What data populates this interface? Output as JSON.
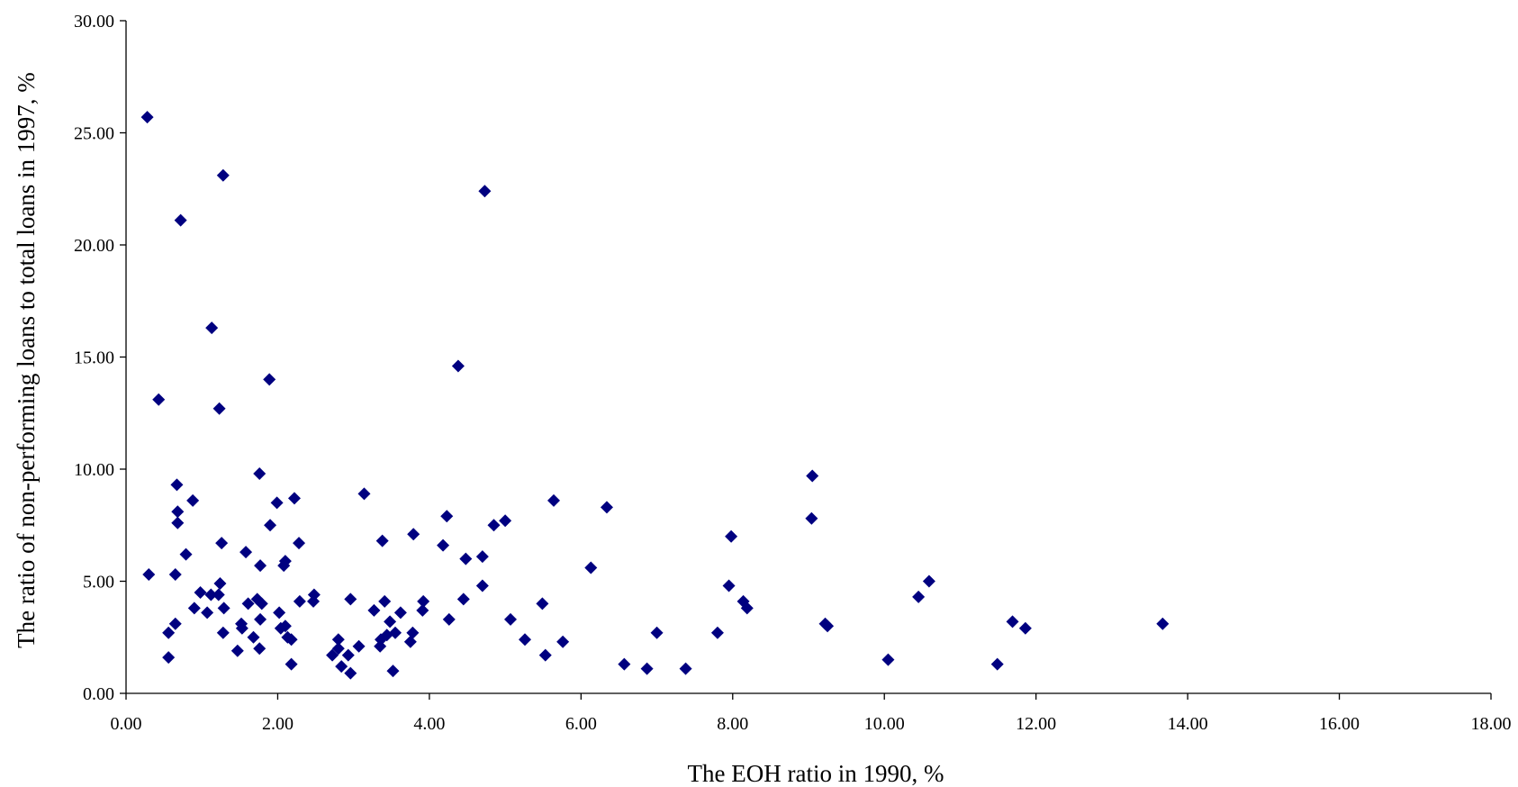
{
  "chart_data": {
    "type": "scatter",
    "title": "",
    "xlabel": "The EOH ratio in 1990, %",
    "ylabel": "The ratio of non-performing loans to total loans in 1997, %",
    "xlim": [
      0,
      18
    ],
    "ylim": [
      0,
      30
    ],
    "x_ticks": [
      "0.00",
      "2.00",
      "4.00",
      "6.00",
      "8.00",
      "10.00",
      "12.00",
      "14.00",
      "16.00",
      "18.00"
    ],
    "y_ticks": [
      "0.00",
      "5.00",
      "10.00",
      "15.00",
      "20.00",
      "25.00",
      "30.00"
    ],
    "grid": false,
    "legend": "none",
    "marker": "diamond",
    "marker_color": "#000080",
    "series": [
      {
        "points": [
          [
            0.28,
            25.7
          ],
          [
            1.28,
            23.1
          ],
          [
            0.72,
            21.1
          ],
          [
            4.73,
            22.4
          ],
          [
            1.13,
            16.3
          ],
          [
            0.43,
            13.1
          ],
          [
            4.38,
            14.6
          ],
          [
            1.89,
            14.0
          ],
          [
            1.23,
            12.7
          ],
          [
            0.3,
            5.3
          ],
          [
            0.67,
            9.3
          ],
          [
            1.76,
            9.8
          ],
          [
            9.05,
            9.7
          ],
          [
            0.88,
            8.6
          ],
          [
            0.68,
            8.1
          ],
          [
            1.99,
            8.5
          ],
          [
            2.22,
            8.7
          ],
          [
            3.14,
            8.9
          ],
          [
            5.64,
            8.6
          ],
          [
            0.68,
            7.6
          ],
          [
            1.9,
            7.5
          ],
          [
            4.23,
            7.9
          ],
          [
            6.34,
            8.3
          ],
          [
            9.04,
            7.8
          ],
          [
            0.79,
            6.2
          ],
          [
            1.26,
            6.7
          ],
          [
            1.58,
            6.3
          ],
          [
            2.28,
            6.7
          ],
          [
            3.38,
            6.8
          ],
          [
            3.79,
            7.1
          ],
          [
            4.18,
            6.6
          ],
          [
            4.85,
            7.5
          ],
          [
            5.0,
            7.7
          ],
          [
            7.98,
            7.0
          ],
          [
            1.77,
            5.7
          ],
          [
            2.08,
            5.7
          ],
          [
            2.1,
            5.9
          ],
          [
            4.48,
            6.0
          ],
          [
            4.7,
            6.1
          ],
          [
            6.13,
            5.6
          ],
          [
            0.65,
            5.3
          ],
          [
            1.24,
            4.9
          ],
          [
            0.98,
            4.5
          ],
          [
            1.12,
            4.4
          ],
          [
            1.22,
            4.4
          ],
          [
            1.61,
            4.0
          ],
          [
            1.73,
            4.2
          ],
          [
            1.79,
            4.0
          ],
          [
            2.48,
            4.4
          ],
          [
            2.96,
            4.2
          ],
          [
            3.41,
            4.1
          ],
          [
            4.45,
            4.2
          ],
          [
            4.7,
            4.8
          ],
          [
            5.49,
            4.0
          ],
          [
            7.95,
            4.8
          ],
          [
            8.14,
            4.1
          ],
          [
            10.45,
            4.3
          ],
          [
            10.59,
            5.0
          ],
          [
            2.29,
            4.1
          ],
          [
            2.47,
            4.1
          ],
          [
            0.9,
            3.8
          ],
          [
            1.07,
            3.6
          ],
          [
            1.29,
            3.8
          ],
          [
            1.53,
            2.9
          ],
          [
            1.68,
            2.5
          ],
          [
            1.77,
            3.3
          ],
          [
            2.02,
            3.6
          ],
          [
            2.04,
            2.9
          ],
          [
            2.1,
            3.0
          ],
          [
            2.13,
            2.5
          ],
          [
            3.27,
            3.7
          ],
          [
            3.48,
            3.2
          ],
          [
            3.62,
            3.6
          ],
          [
            3.91,
            3.7
          ],
          [
            3.92,
            4.1
          ],
          [
            4.26,
            3.3
          ],
          [
            5.07,
            3.3
          ],
          [
            8.19,
            3.8
          ],
          [
            9.22,
            3.1
          ],
          [
            9.25,
            3.0
          ],
          [
            11.69,
            3.2
          ],
          [
            11.86,
            2.9
          ],
          [
            13.67,
            3.1
          ],
          [
            0.56,
            2.7
          ],
          [
            0.65,
            3.1
          ],
          [
            1.28,
            2.7
          ],
          [
            1.52,
            3.1
          ],
          [
            2.18,
            2.4
          ],
          [
            2.8,
            2.4
          ],
          [
            3.36,
            2.4
          ],
          [
            3.44,
            2.6
          ],
          [
            3.55,
            2.7
          ],
          [
            3.78,
            2.7
          ],
          [
            5.26,
            2.4
          ],
          [
            5.76,
            2.3
          ],
          [
            7.0,
            2.7
          ],
          [
            7.8,
            2.7
          ],
          [
            1.47,
            1.9
          ],
          [
            1.76,
            2.0
          ],
          [
            2.72,
            1.7
          ],
          [
            2.8,
            2.0
          ],
          [
            2.93,
            1.7
          ],
          [
            3.07,
            2.1
          ],
          [
            3.35,
            2.1
          ],
          [
            3.75,
            2.3
          ],
          [
            5.53,
            1.7
          ],
          [
            0.56,
            1.6
          ],
          [
            2.18,
            1.3
          ],
          [
            2.84,
            1.2
          ],
          [
            2.96,
            0.9
          ],
          [
            3.52,
            1.0
          ],
          [
            6.57,
            1.3
          ],
          [
            6.87,
            1.1
          ],
          [
            7.38,
            1.1
          ],
          [
            10.05,
            1.5
          ],
          [
            11.49,
            1.3
          ]
        ]
      }
    ]
  }
}
